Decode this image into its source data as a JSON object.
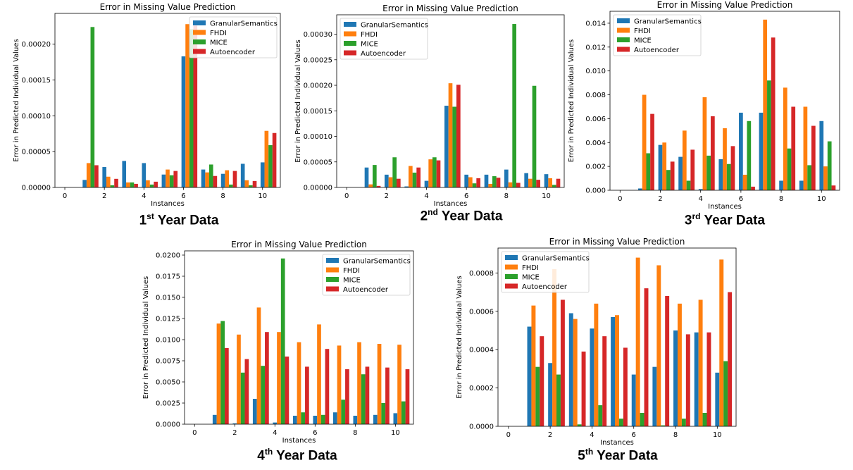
{
  "colors": {
    "GranularSemantics": "#1f77b4",
    "FHDI": "#ff7f0e",
    "MICE": "#2ca02c",
    "Autoencoder": "#d62728"
  },
  "chart_data": [
    {
      "type": "bar",
      "title": "Error in Missing Value Prediction",
      "xlabel": "Instances",
      "ylabel": "Error in Predicted Individual Values",
      "xlim": [
        -0.5,
        10.9
      ],
      "ylim": [
        0,
        0.000243
      ],
      "yticks": [
        0,
        5e-05,
        0.0001,
        0.00015,
        0.0002
      ],
      "yticklabels": [
        "0.00000",
        "0.00005",
        "0.00010",
        "0.00015",
        "0.00020"
      ],
      "xticks": [
        0,
        2,
        4,
        6,
        8,
        10
      ],
      "xticklabels": [
        "0",
        "2",
        "4",
        "6",
        "8",
        "10"
      ],
      "categories": [
        1,
        2,
        3,
        4,
        5,
        6,
        7,
        8,
        9,
        10
      ],
      "legend_position": "top-right",
      "series": [
        {
          "name": "GranularSemantics",
          "values": [
            1.05e-05,
            2.85e-05,
            3.7e-05,
            3.4e-05,
            1.8e-05,
            0.000183,
            2.5e-05,
            1.9e-05,
            3.3e-05,
            3.5e-05
          ]
        },
        {
          "name": "FHDI",
          "values": [
            3.4e-05,
            1.5e-05,
            7e-06,
            1e-05,
            2.5e-05,
            0.000228,
            2.1e-05,
            2.4e-05,
            1e-05,
            7.9e-05
          ]
        },
        {
          "name": "MICE",
          "values": [
            0.000224,
            3e-06,
            7e-06,
            4e-06,
            1.7e-05,
            0.000221,
            3.2e-05,
            4e-06,
            3e-06,
            5.9e-05
          ]
        },
        {
          "name": "Autoencoder",
          "values": [
            3.1e-05,
            1.2e-05,
            5e-06,
            8e-06,
            2.3e-05,
            0.000226,
            1.6e-05,
            2.3e-05,
            9e-06,
            7.6e-05
          ]
        }
      ],
      "caption": {
        "ordinal": "1",
        "suffix": "st",
        "text": "Year Data"
      }
    },
    {
      "type": "bar",
      "title": "Error in Missing Value Prediction",
      "xlabel": "Instances",
      "ylabel": "Error in Predicted Individual Values",
      "xlim": [
        -0.5,
        10.9
      ],
      "ylim": [
        0,
        0.000338
      ],
      "yticks": [
        0,
        5e-05,
        0.0001,
        0.00015,
        0.0002,
        0.00025,
        0.0003
      ],
      "yticklabels": [
        "0.00000",
        "0.00005",
        "0.00010",
        "0.00015",
        "0.00020",
        "0.00025",
        "0.00030"
      ],
      "xticks": [
        0,
        2,
        4,
        6,
        8,
        10
      ],
      "xticklabels": [
        "0",
        "2",
        "4",
        "6",
        "8",
        "10"
      ],
      "categories": [
        1,
        2,
        3,
        4,
        5,
        6,
        7,
        8,
        9,
        10
      ],
      "legend_position": "top-left",
      "series": [
        {
          "name": "GranularSemantics",
          "values": [
            3.9e-05,
            2.5e-05,
            2e-06,
            1.3e-05,
            0.00016,
            2.5e-05,
            2.5e-05,
            3.5e-05,
            2.8e-05,
            2.6e-05
          ]
        },
        {
          "name": "FHDI",
          "values": [
            6e-06,
            2e-05,
            4.2e-05,
            5.5e-05,
            0.000204,
            2e-05,
            7e-06,
            1e-05,
            1.7e-05,
            1.8e-05
          ]
        },
        {
          "name": "MICE",
          "values": [
            4.4e-05,
            5.9e-05,
            2.9e-05,
            5.9e-05,
            0.000158,
            8e-06,
            2.2e-05,
            0.00032,
            0.000199,
            5e-06
          ]
        },
        {
          "name": "Autoencoder",
          "values": [
            3e-06,
            1.7e-05,
            3.9e-05,
            5.3e-05,
            0.000201,
            1.8e-05,
            1.9e-05,
            9e-06,
            1.5e-05,
            1.7e-05
          ]
        }
      ],
      "caption": {
        "ordinal": "2",
        "suffix": "nd",
        "text": "Year Data"
      }
    },
    {
      "type": "bar",
      "title": "Error in Missing Value Prediction",
      "xlabel": "Instances",
      "ylabel": "Error in Predicted Individual Values",
      "xlim": [
        -0.5,
        10.9
      ],
      "ylim": [
        0,
        0.015
      ],
      "yticks": [
        0,
        0.002,
        0.004,
        0.006,
        0.008,
        0.01,
        0.012,
        0.014
      ],
      "yticklabels": [
        "0.000",
        "0.002",
        "0.004",
        "0.006",
        "0.008",
        "0.010",
        "0.012",
        "0.014"
      ],
      "xticks": [
        0,
        2,
        4,
        6,
        8,
        10
      ],
      "xticklabels": [
        "0",
        "2",
        "4",
        "6",
        "8",
        "10"
      ],
      "categories": [
        1,
        2,
        3,
        4,
        5,
        6,
        7,
        8,
        9,
        10
      ],
      "legend_position": "top-left",
      "series": [
        {
          "name": "GranularSemantics",
          "values": [
            0.00015,
            0.0038,
            0.0028,
            0.0001,
            0.0026,
            0.0065,
            0.0065,
            0.0008,
            0.0008,
            0.0058
          ]
        },
        {
          "name": "FHDI",
          "values": [
            0.008,
            0.004,
            0.005,
            0.0078,
            0.0052,
            0.0013,
            0.0143,
            0.0086,
            0.007,
            0.002
          ]
        },
        {
          "name": "MICE",
          "values": [
            0.0031,
            0.0017,
            0.0008,
            0.0029,
            0.0022,
            0.0058,
            0.0092,
            0.0035,
            0.0021,
            0.0041
          ]
        },
        {
          "name": "Autoencoder",
          "values": [
            0.0064,
            0.0024,
            0.0034,
            0.0062,
            0.0037,
            0.0003,
            0.0128,
            0.007,
            0.0054,
            0.0004
          ]
        }
      ],
      "caption": {
        "ordinal": "3",
        "suffix": "rd",
        "text": "Year Data"
      }
    },
    {
      "type": "bar",
      "title": "Error in Missing Value Prediction",
      "xlabel": "Instances",
      "ylabel": "Error in Predicted Individual Values",
      "xlim": [
        -0.5,
        10.9
      ],
      "ylim": [
        0,
        0.0205
      ],
      "yticks": [
        0,
        0.0025,
        0.005,
        0.0075,
        0.01,
        0.0125,
        0.015,
        0.0175,
        0.02
      ],
      "yticklabels": [
        "0.0000",
        "0.0025",
        "0.0050",
        "0.0075",
        "0.0100",
        "0.0125",
        "0.0150",
        "0.0175",
        "0.0200"
      ],
      "xticks": [
        0,
        2,
        4,
        6,
        8,
        10
      ],
      "xticklabels": [
        "0",
        "2",
        "4",
        "6",
        "8",
        "10"
      ],
      "categories": [
        1,
        2,
        3,
        4,
        5,
        6,
        7,
        8,
        9,
        10
      ],
      "legend_position": "top-right",
      "series": [
        {
          "name": "GranularSemantics",
          "values": [
            0.0011,
            0.0001,
            0.003,
            0.0002,
            0.001,
            0.001,
            0.0014,
            0.001,
            0.0011,
            0.0013
          ]
        },
        {
          "name": "FHDI",
          "values": [
            0.0119,
            0.0106,
            0.0138,
            0.0109,
            0.0097,
            0.0118,
            0.0093,
            0.0097,
            0.0095,
            0.0094
          ]
        },
        {
          "name": "MICE",
          "values": [
            0.0122,
            0.0061,
            0.0069,
            0.0196,
            0.0014,
            0.0011,
            0.0029,
            0.0059,
            0.0025,
            0.0027
          ]
        },
        {
          "name": "Autoencoder",
          "values": [
            0.009,
            0.0077,
            0.0109,
            0.008,
            0.0068,
            0.0089,
            0.0065,
            0.0068,
            0.0067,
            0.0065
          ]
        }
      ],
      "caption": {
        "ordinal": "4",
        "suffix": "th",
        "text": "Year Data"
      }
    },
    {
      "type": "bar",
      "title": "Error in Missing Value Prediction",
      "xlabel": "Instances",
      "ylabel": "Error in Predicted Individual Values",
      "xlim": [
        -0.5,
        10.9
      ],
      "ylim": [
        0,
        0.00093
      ],
      "yticks": [
        0,
        0.0002,
        0.0004,
        0.0006,
        0.0008
      ],
      "yticklabels": [
        "0.0000",
        "0.0002",
        "0.0004",
        "0.0006",
        "0.0008"
      ],
      "xticks": [
        0,
        2,
        4,
        6,
        8,
        10
      ],
      "xticklabels": [
        "0",
        "2",
        "4",
        "6",
        "8",
        "10"
      ],
      "categories": [
        1,
        2,
        3,
        4,
        5,
        6,
        7,
        8,
        9,
        10
      ],
      "legend_position": "top-left",
      "series": [
        {
          "name": "GranularSemantics",
          "values": [
            0.00052,
            0.00033,
            0.00059,
            0.00051,
            0.00057,
            0.00027,
            0.00031,
            0.0005,
            0.00049,
            0.00028
          ]
        },
        {
          "name": "FHDI",
          "values": [
            0.00063,
            0.00082,
            0.00056,
            0.00064,
            0.00058,
            0.00088,
            0.00084,
            0.00064,
            0.00066,
            0.00087
          ]
        },
        {
          "name": "MICE",
          "values": [
            0.00031,
            0.00027,
            1e-05,
            0.00011,
            4e-05,
            7e-05,
            5e-06,
            4e-05,
            7e-05,
            0.00034
          ]
        },
        {
          "name": "Autoencoder",
          "values": [
            0.00047,
            0.00066,
            0.00039,
            0.00047,
            0.00041,
            0.00072,
            0.00068,
            0.00048,
            0.00049,
            0.0007
          ]
        }
      ],
      "caption": {
        "ordinal": "5",
        "suffix": "th",
        "text": "Year Data"
      }
    }
  ]
}
